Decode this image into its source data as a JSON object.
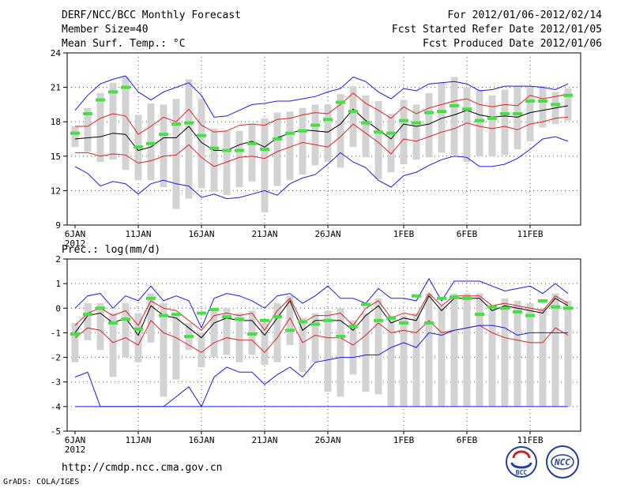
{
  "header": {
    "title": "DERF/NCC/BCC Monthly Forecast",
    "member_size": "Member Size=40",
    "variable": "Mean Surf. Temp.: °C",
    "period": "For 2012/01/06-2012/02/14",
    "fcst_started": "Fcst Started Refer Date 2012/01/05",
    "fcst_produced": "Fcst Produced Date 2012/01/06"
  },
  "footer": {
    "url": "http://cmdp.ncc.cma.gov.cn",
    "credit": "GrADS: COLA/IGES",
    "logo_left": "BCC",
    "logo_right": "NCC"
  },
  "colors": {
    "box": "#d3d3d3",
    "obs": "#44e044",
    "mean": "#000000",
    "spread": "#dd2222",
    "range": "#1a1ae6",
    "grid": "#555555"
  },
  "chart_data": [
    {
      "type": "line",
      "title": "Mean Surf. Temp.: °C",
      "ylim": [
        9,
        24
      ],
      "yticks": [
        9,
        12,
        15,
        18,
        21,
        24
      ],
      "xlabels": [
        {
          "label": "6JAN",
          "day": 0,
          "year": "2012"
        },
        {
          "label": "11JAN",
          "day": 5
        },
        {
          "label": "16JAN",
          "day": 10
        },
        {
          "label": "21JAN",
          "day": 15
        },
        {
          "label": "26JAN",
          "day": 20
        },
        {
          "label": "1FEB",
          "day": 26
        },
        {
          "label": "6FEB",
          "day": 31
        },
        {
          "label": "11FEB",
          "day": 36
        }
      ],
      "series": [
        {
          "name": "ensemble mean",
          "values": [
            16.5,
            16.6,
            16.7,
            17.0,
            16.9,
            15.5,
            15.8,
            16.6,
            16.6,
            17.6,
            16.2,
            15.5,
            15.5,
            16.0,
            16.3,
            15.8,
            16.6,
            17.0,
            17.3,
            17.2,
            17.1,
            17.8,
            19.1,
            18.1,
            17.3,
            16.5,
            17.8,
            17.6,
            17.8,
            18.3,
            18.6,
            19.0,
            18.6,
            18.4,
            18.5,
            18.4,
            18.8,
            19.0,
            19.2,
            19.4
          ]
        },
        {
          "name": "upper spread",
          "values": [
            17.6,
            17.6,
            18.3,
            18.7,
            18.5,
            16.9,
            17.6,
            18.4,
            18.0,
            19.1,
            17.7,
            17.1,
            17.2,
            17.7,
            17.8,
            17.7,
            18.2,
            18.3,
            18.6,
            18.8,
            18.7,
            19.5,
            20.5,
            19.6,
            19.0,
            18.3,
            19.3,
            18.7,
            19.2,
            19.5,
            19.8,
            20.0,
            19.5,
            19.3,
            19.5,
            19.4,
            20.3,
            20.0,
            20.2,
            20.4
          ]
        },
        {
          "name": "lower spread",
          "values": [
            15.3,
            15.3,
            15.0,
            15.2,
            15.1,
            14.4,
            14.6,
            15.0,
            15.1,
            16.0,
            14.9,
            14.1,
            14.5,
            14.9,
            15.0,
            14.8,
            15.4,
            15.8,
            16.2,
            16.0,
            15.8,
            16.7,
            17.8,
            17.0,
            16.2,
            15.2,
            16.5,
            16.3,
            16.7,
            17.1,
            17.4,
            17.9,
            17.6,
            17.4,
            17.6,
            17.3,
            17.8,
            18.0,
            18.3,
            18.4
          ]
        },
        {
          "name": "ensemble max",
          "values": [
            19.0,
            20.3,
            21.3,
            21.7,
            22.0,
            20.6,
            19.9,
            20.6,
            21.0,
            21.4,
            20.3,
            18.4,
            18.5,
            19.0,
            19.5,
            19.6,
            19.8,
            19.8,
            20.0,
            20.2,
            20.6,
            20.9,
            21.9,
            21.5,
            20.6,
            20.0,
            20.9,
            20.7,
            21.3,
            21.4,
            21.5,
            21.3,
            20.7,
            20.8,
            21.1,
            21.1,
            21.1,
            21.0,
            20.8,
            21.3
          ]
        },
        {
          "name": "ensemble min",
          "values": [
            14.1,
            13.5,
            12.4,
            12.8,
            12.6,
            11.7,
            12.6,
            12.9,
            12.6,
            12.4,
            11.4,
            11.7,
            11.3,
            11.4,
            11.7,
            12.0,
            11.6,
            12.6,
            13.1,
            13.4,
            14.3,
            15.3,
            14.5,
            14.0,
            12.9,
            12.3,
            13.3,
            13.6,
            14.2,
            14.7,
            15.0,
            14.9,
            14.1,
            14.1,
            14.3,
            14.8,
            15.6,
            16.5,
            16.7,
            16.3
          ]
        }
      ],
      "boxes": {
        "upper": [
          17.6,
          19.2,
          20.5,
          21.4,
          21.9,
          18.6,
          19.6,
          19.5,
          20.0,
          21.7,
          20.0,
          17.4,
          17.2,
          17.2,
          17.8,
          18.3,
          18.8,
          18.9,
          19.2,
          19.5,
          19.5,
          20.4,
          21.1,
          20.3,
          19.8,
          18.7,
          19.9,
          19.5,
          20.5,
          21.4,
          21.9,
          21.0,
          20.8,
          20.3,
          20.8,
          21.1,
          21.1,
          21.1,
          20.6,
          20.9
        ],
        "lower": [
          15.8,
          15.4,
          14.5,
          14.7,
          13.8,
          12.9,
          12.9,
          12.3,
          10.4,
          11.3,
          12.2,
          11.9,
          11.6,
          12.3,
          12.8,
          10.1,
          12.4,
          12.9,
          13.4,
          14.2,
          14.5,
          14.0,
          15.8,
          14.9,
          13.0,
          13.6,
          14.3,
          14.7,
          14.9,
          15.3,
          15.1,
          14.5,
          15.0,
          15.0,
          15.1,
          15.6,
          16.3,
          17.5,
          17.8,
          18.1
        ]
      },
      "observed": [
        17.0,
        18.7,
        19.9,
        20.6,
        21.0,
        15.8,
        16.1,
        16.9,
        17.8,
        17.9,
        16.8,
        15.7,
        15.5,
        15.5,
        16.1,
        15.6,
        16.5,
        17.0,
        17.2,
        17.7,
        18.2,
        19.7,
        18.9,
        17.9,
        17.1,
        17.0,
        18.1,
        17.9,
        18.8,
        18.9,
        19.4,
        19.1,
        18.1,
        18.3,
        18.7,
        18.7,
        19.8,
        19.8,
        19.5,
        20.3
      ]
    },
    {
      "type": "line",
      "title": "Prec.: log(mm/d)",
      "ylim": [
        -5,
        2
      ],
      "yticks": [
        -5,
        -4,
        -3,
        -2,
        -1,
        0,
        1,
        2
      ],
      "xlabels": [
        {
          "label": "6JAN",
          "day": 0,
          "year": "2012"
        },
        {
          "label": "11JAN",
          "day": 5
        },
        {
          "label": "16JAN",
          "day": 10
        },
        {
          "label": "21JAN",
          "day": 15
        },
        {
          "label": "26JAN",
          "day": 20
        },
        {
          "label": "1FEB",
          "day": 26
        },
        {
          "label": "6FEB",
          "day": 31
        },
        {
          "label": "11FEB",
          "day": 36
        }
      ],
      "series": [
        {
          "name": "ensemble mean",
          "values": [
            -1.0,
            -0.3,
            -0.2,
            -0.6,
            -0.4,
            -1.1,
            0.1,
            -0.3,
            -0.4,
            -0.8,
            -1.2,
            -0.6,
            -0.4,
            -0.5,
            -0.5,
            -1.1,
            -0.4,
            0.3,
            -0.9,
            -0.5,
            -0.5,
            -0.5,
            -0.9,
            -0.3,
            0.1,
            -0.6,
            -0.4,
            -0.5,
            0.5,
            -0.1,
            0.4,
            0.4,
            0.4,
            -0.1,
            0.1,
            0.0,
            -0.1,
            -0.2,
            0.4,
            0.1
          ]
        },
        {
          "name": "upper spread",
          "values": [
            -0.7,
            -0.2,
            0.0,
            -0.3,
            -0.1,
            -0.7,
            0.3,
            0.0,
            -0.1,
            -0.5,
            -0.9,
            -0.3,
            -0.2,
            -0.3,
            -0.2,
            -0.9,
            -0.1,
            0.4,
            -0.6,
            -0.3,
            -0.3,
            -0.2,
            -0.7,
            0.0,
            0.3,
            -0.4,
            -0.2,
            -0.3,
            0.6,
            0.1,
            0.5,
            0.5,
            0.5,
            0.1,
            0.2,
            0.1,
            0.0,
            -0.1,
            0.5,
            0.2
          ]
        },
        {
          "name": "lower spread",
          "values": [
            -1.2,
            -0.8,
            -0.9,
            -1.4,
            -1.2,
            -1.5,
            -0.5,
            -1.0,
            -1.2,
            -1.5,
            -1.8,
            -1.4,
            -1.2,
            -1.3,
            -1.3,
            -1.8,
            -1.2,
            -0.4,
            -1.4,
            -1.1,
            -1.2,
            -1.2,
            -1.5,
            -1.1,
            -0.6,
            -1.0,
            -0.9,
            -1.0,
            -0.5,
            -1.0,
            -0.9,
            -0.8,
            -0.7,
            -1.0,
            -1.2,
            -1.3,
            -1.4,
            -1.4,
            -0.8,
            -1.1
          ]
        },
        {
          "name": "ensemble max",
          "values": [
            0.0,
            0.5,
            0.6,
            0.0,
            0.5,
            0.3,
            0.9,
            0.3,
            0.5,
            0.3,
            -0.8,
            0.4,
            0.6,
            0.5,
            0.3,
            0.0,
            0.5,
            0.6,
            0.2,
            0.5,
            0.9,
            0.4,
            0.4,
            0.2,
            0.8,
            0.4,
            0.4,
            0.3,
            1.2,
            0.3,
            1.1,
            1.1,
            1.1,
            0.9,
            0.7,
            0.8,
            0.9,
            0.6,
            1.0,
            0.6
          ]
        },
        {
          "name": "ensemble min",
          "values": [
            -2.8,
            -2.6,
            -4.0,
            -4.0,
            -4.0,
            -4.0,
            -4.0,
            -4.0,
            -3.6,
            -3.2,
            -4.0,
            -2.8,
            -2.4,
            -2.6,
            -2.6,
            -3.1,
            -2.7,
            -2.4,
            -2.8,
            -2.2,
            -2.1,
            -2.0,
            -2.0,
            -1.9,
            -1.9,
            -1.6,
            -1.4,
            -1.6,
            -1.0,
            -1.1,
            -0.9,
            -0.8,
            -0.7,
            -0.7,
            -0.8,
            -1.1,
            -1.0,
            -1.0,
            -1.0,
            -1.0
          ]
        },
        {
          "name": "lower bound",
          "values": [
            -4.0,
            -4.0,
            -4.0,
            -4.0,
            -4.0,
            -4.0,
            -4.0,
            -4.0,
            -4.0,
            -4.0,
            -4.0,
            -4.0,
            -4.0,
            -4.0,
            -4.0,
            -4.0,
            -4.0,
            -4.0,
            -4.0,
            -4.0,
            -4.0,
            -4.0,
            -4.0,
            -4.0,
            -4.0,
            -4.0,
            -4.0,
            -4.0,
            -4.0,
            -4.0,
            -4.0,
            -4.0,
            -4.0,
            -4.0,
            -4.0,
            -4.0,
            -4.0,
            -4.0,
            -4.0,
            -4.0
          ]
        }
      ],
      "boxes": {
        "upper": [
          -0.6,
          0.2,
          0.2,
          -0.2,
          0.2,
          -0.2,
          0.6,
          0.2,
          -0.3,
          -0.6,
          -1.0,
          -0.1,
          0.0,
          -0.2,
          -0.1,
          -0.6,
          0.2,
          0.5,
          -0.4,
          -0.2,
          -0.1,
          0.0,
          -0.5,
          -0.2,
          0.4,
          -0.3,
          -0.3,
          -0.2,
          0.6,
          0.1,
          0.6,
          0.6,
          0.6,
          0.0,
          0.4,
          0.3,
          0.2,
          0.0,
          0.6,
          0.3
        ],
        "lower": [
          -2.2,
          -1.3,
          -1.7,
          -2.8,
          -2.0,
          -2.2,
          -1.4,
          -3.6,
          -2.9,
          -1.7,
          -2.4,
          -2.0,
          -1.9,
          -2.2,
          -1.9,
          -2.3,
          -2.2,
          -1.5,
          -2.6,
          -2.2,
          -3.4,
          -3.6,
          -2.7,
          -3.4,
          -3.5,
          -4.0,
          -4.0,
          -4.0,
          -4.0,
          -4.0,
          -4.0,
          -4.0,
          -4.0,
          -4.0,
          -4.0,
          -4.0,
          -4.0,
          -4.0,
          -4.0,
          -4.0
        ]
      },
      "observed": [
        -1.05,
        -0.25,
        0.0,
        -0.6,
        -0.45,
        -0.85,
        0.4,
        -0.3,
        -0.25,
        -1.15,
        -0.2,
        -0.05,
        -0.35,
        -0.45,
        -1.05,
        -0.5,
        -0.35,
        -0.9,
        -0.55,
        -0.65,
        -0.5,
        -1.15,
        -0.75,
        0.15,
        -0.5,
        -0.4,
        -0.6,
        0.5,
        -0.6,
        0.4,
        0.45,
        0.4,
        -0.25,
        0.05,
        0.0,
        -0.15,
        -0.3,
        0.3,
        0.05,
        0.0
      ]
    }
  ]
}
